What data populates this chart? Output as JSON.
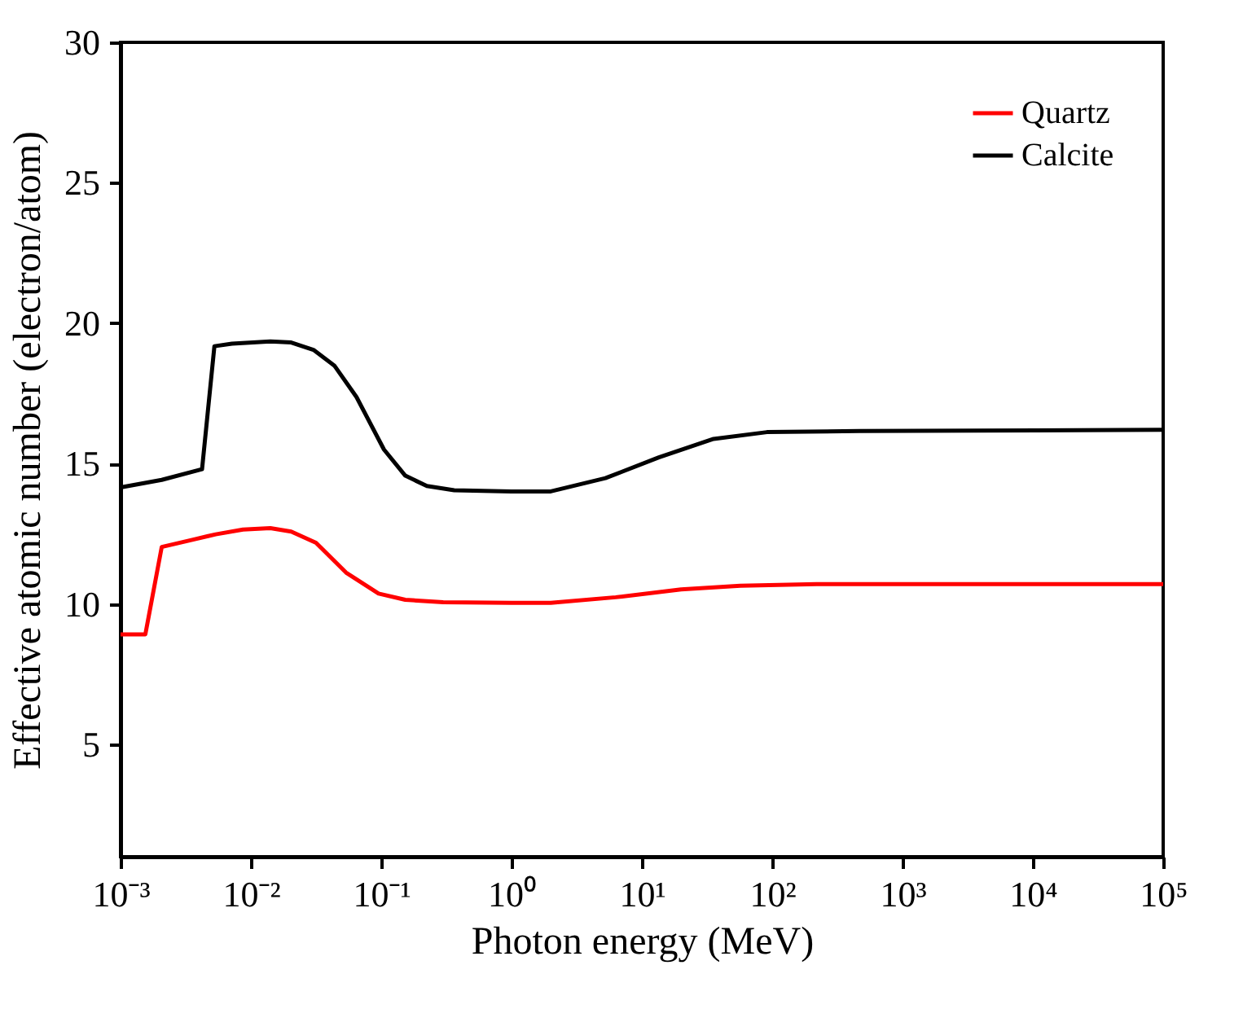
{
  "chart_data": {
    "type": "line",
    "xlabel": "Photon energy (MeV)",
    "ylabel": "Effective atomic number (electron/atom)",
    "log": "x",
    "xlim": [
      0.001,
      100000
    ],
    "ylim": [
      1,
      30
    ],
    "xticks": [
      {
        "value": 0.001,
        "label": "10⁻³"
      },
      {
        "value": 0.01,
        "label": "10⁻²"
      },
      {
        "value": 0.1,
        "label": "10⁻¹"
      },
      {
        "value": 1,
        "label": "10⁰"
      },
      {
        "value": 10,
        "label": "10¹"
      },
      {
        "value": 100,
        "label": "10²"
      },
      {
        "value": 1000,
        "label": "10³"
      },
      {
        "value": 10000,
        "label": "10⁴"
      },
      {
        "value": 100000,
        "label": "10⁵"
      }
    ],
    "yticks": [
      5,
      10,
      15,
      20,
      25,
      30
    ],
    "grid": false,
    "legend": "top right",
    "marker": "none",
    "line_style": "solid",
    "series": [
      {
        "name": "Quartz",
        "color": "#ff0000",
        "x": [
          0.001,
          0.00155,
          0.00207,
          0.00366,
          0.00537,
          0.0087,
          0.0141,
          0.0204,
          0.0316,
          0.0537,
          0.0955,
          0.153,
          0.299,
          1,
          2,
          6.3,
          20,
          57,
          219,
          100000
        ],
        "values": [
          8.92,
          8.92,
          12.03,
          12.3,
          12.48,
          12.65,
          12.7,
          12.58,
          12.18,
          11.12,
          10.37,
          10.15,
          10.06,
          10.04,
          10.04,
          10.24,
          10.52,
          10.65,
          10.71,
          10.71
        ]
      },
      {
        "name": "Calcite",
        "color": "#000000",
        "x": [
          0.001,
          0.00207,
          0.00422,
          0.00525,
          0.00716,
          0.0141,
          0.0204,
          0.0302,
          0.0437,
          0.0646,
          0.105,
          0.153,
          0.224,
          0.363,
          1,
          2,
          5.25,
          13.5,
          35.5,
          91.2,
          468,
          100000
        ],
        "values": [
          14.15,
          14.42,
          14.8,
          19.18,
          19.27,
          19.35,
          19.31,
          19.05,
          18.49,
          17.37,
          15.5,
          14.57,
          14.2,
          14.05,
          14.01,
          14.01,
          14.48,
          15.22,
          15.88,
          16.12,
          16.16,
          16.2
        ]
      }
    ]
  }
}
